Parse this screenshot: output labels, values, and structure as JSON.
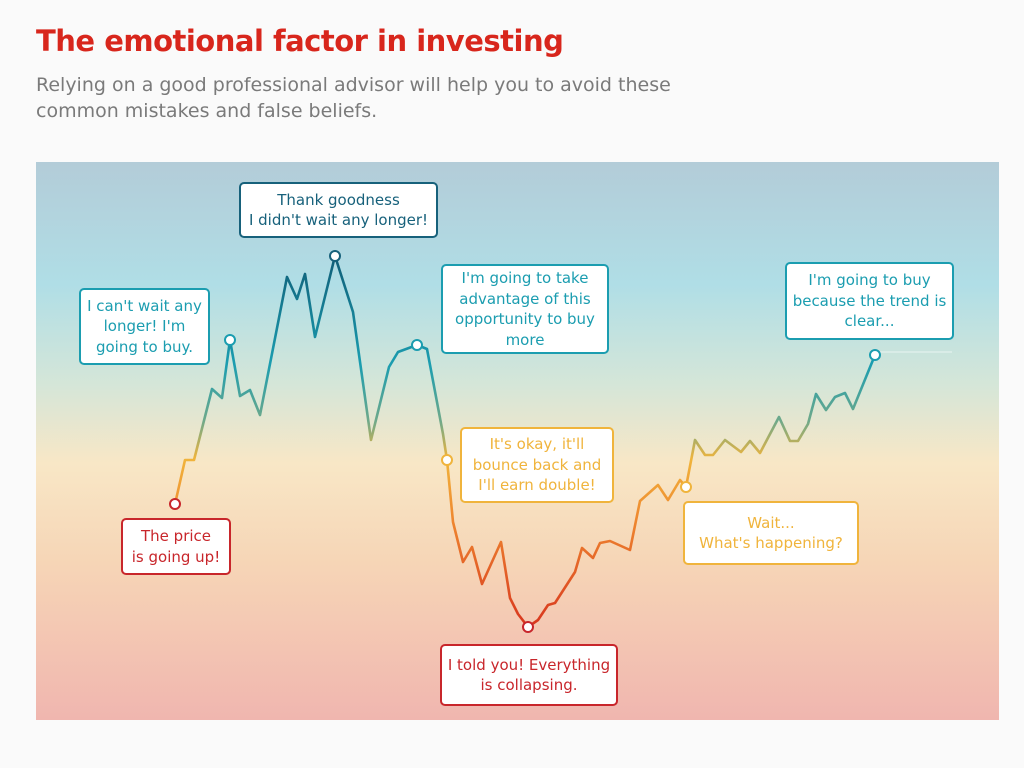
{
  "header": {
    "title": "The emotional factor in investing",
    "subtitle": "Relying on a good professional advisor will help you to avoid these common mistakes and false beliefs."
  },
  "colors": {
    "title": "#d8261c",
    "red": "#c8262b",
    "dark_teal": "#17617b",
    "teal": "#1b9db0",
    "yellow": "#f0b43c"
  },
  "callouts": [
    {
      "text": "The price\nis going up!",
      "color": "red"
    },
    {
      "text": "I can't wait any\nlonger! I'm\ngoing to buy.",
      "color": "teal"
    },
    {
      "text": "Thank goodness\nI didn't wait any longer!",
      "color": "dark_teal"
    },
    {
      "text": "I'm going to take\nadvantage of this\nopportunity to buy\nmore",
      "color": "teal"
    },
    {
      "text": "It's okay, it'll\nbounce back and\nI'll earn double!",
      "color": "yellow"
    },
    {
      "text": "I told you! Everything\nis collapsing.",
      "color": "red"
    },
    {
      "text": "Wait...\nWhat's happening?",
      "color": "yellow"
    },
    {
      "text": "I'm going to buy\nbecause the trend is\nclear...",
      "color": "teal"
    }
  ]
}
